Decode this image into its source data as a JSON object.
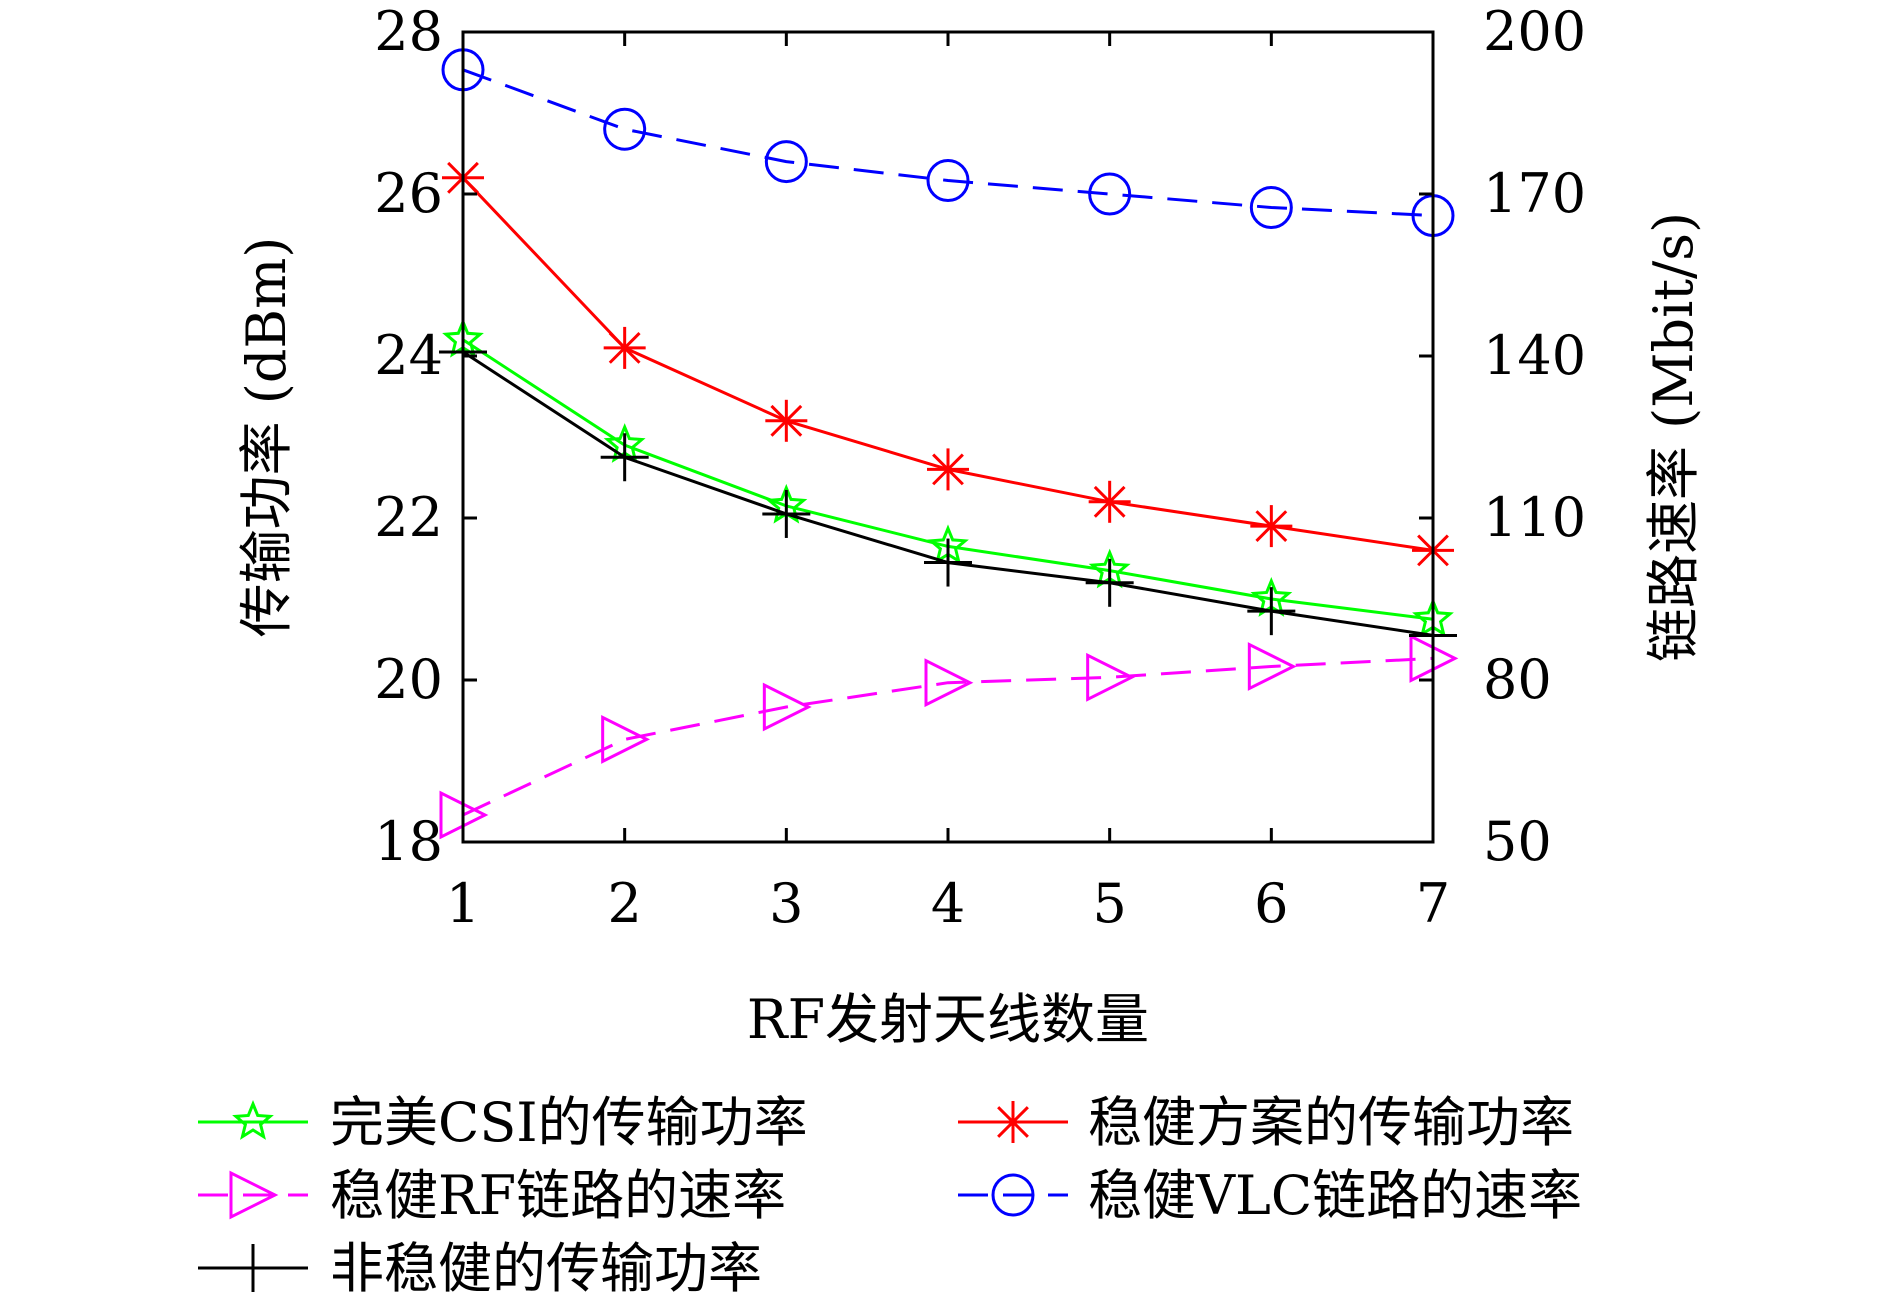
{
  "chart_data": {
    "type": "line",
    "title": "",
    "x": [
      1,
      2,
      3,
      4,
      5,
      6,
      7
    ],
    "xlabel": "RF发射天线数量",
    "ylabel_left": "传输功率 (dBm)",
    "ylabel_right": "链路速率 (Mbit/s)",
    "xlim": [
      1,
      7
    ],
    "ylim_left": [
      18,
      28
    ],
    "ylim_right": [
      50,
      200
    ],
    "xticks": [
      "1",
      "2",
      "3",
      "4",
      "5",
      "6",
      "7"
    ],
    "yticks_left": [
      "18",
      "20",
      "22",
      "24",
      "26",
      "28"
    ],
    "yticks_right": [
      "50",
      "80",
      "110",
      "140",
      "170",
      "200"
    ],
    "grid": false,
    "legend_placement": "below",
    "series": [
      {
        "name": "完美CSI的传输功率",
        "axis": "left",
        "color": "#00ff00",
        "marker": "star",
        "dash": "solid",
        "values": [
          24.2,
          22.9,
          22.15,
          21.65,
          21.35,
          21.0,
          20.75
        ]
      },
      {
        "name": "稳健方案的传输功率",
        "axis": "left",
        "color": "#ff0000",
        "marker": "asterisk",
        "dash": "solid",
        "values": [
          26.2,
          24.1,
          23.2,
          22.6,
          22.2,
          21.9,
          21.6
        ]
      },
      {
        "name": "稳健RF链路的速率",
        "axis": "right",
        "color": "#ff00ff",
        "marker": "triangle-right",
        "dash": "dashed",
        "values": [
          55,
          69,
          75,
          79.5,
          80.5,
          82.5,
          84
        ]
      },
      {
        "name": "稳健VLC链路的速率",
        "axis": "right",
        "color": "#0000ff",
        "marker": "circle",
        "dash": "dashed",
        "values": [
          193,
          182,
          176,
          172.5,
          170,
          167.5,
          166
        ]
      },
      {
        "name": "非稳健的传输功率",
        "axis": "left",
        "color": "#000000",
        "marker": "plus",
        "dash": "solid",
        "values": [
          24.05,
          22.75,
          22.05,
          21.45,
          21.2,
          20.85,
          20.55
        ]
      }
    ]
  }
}
